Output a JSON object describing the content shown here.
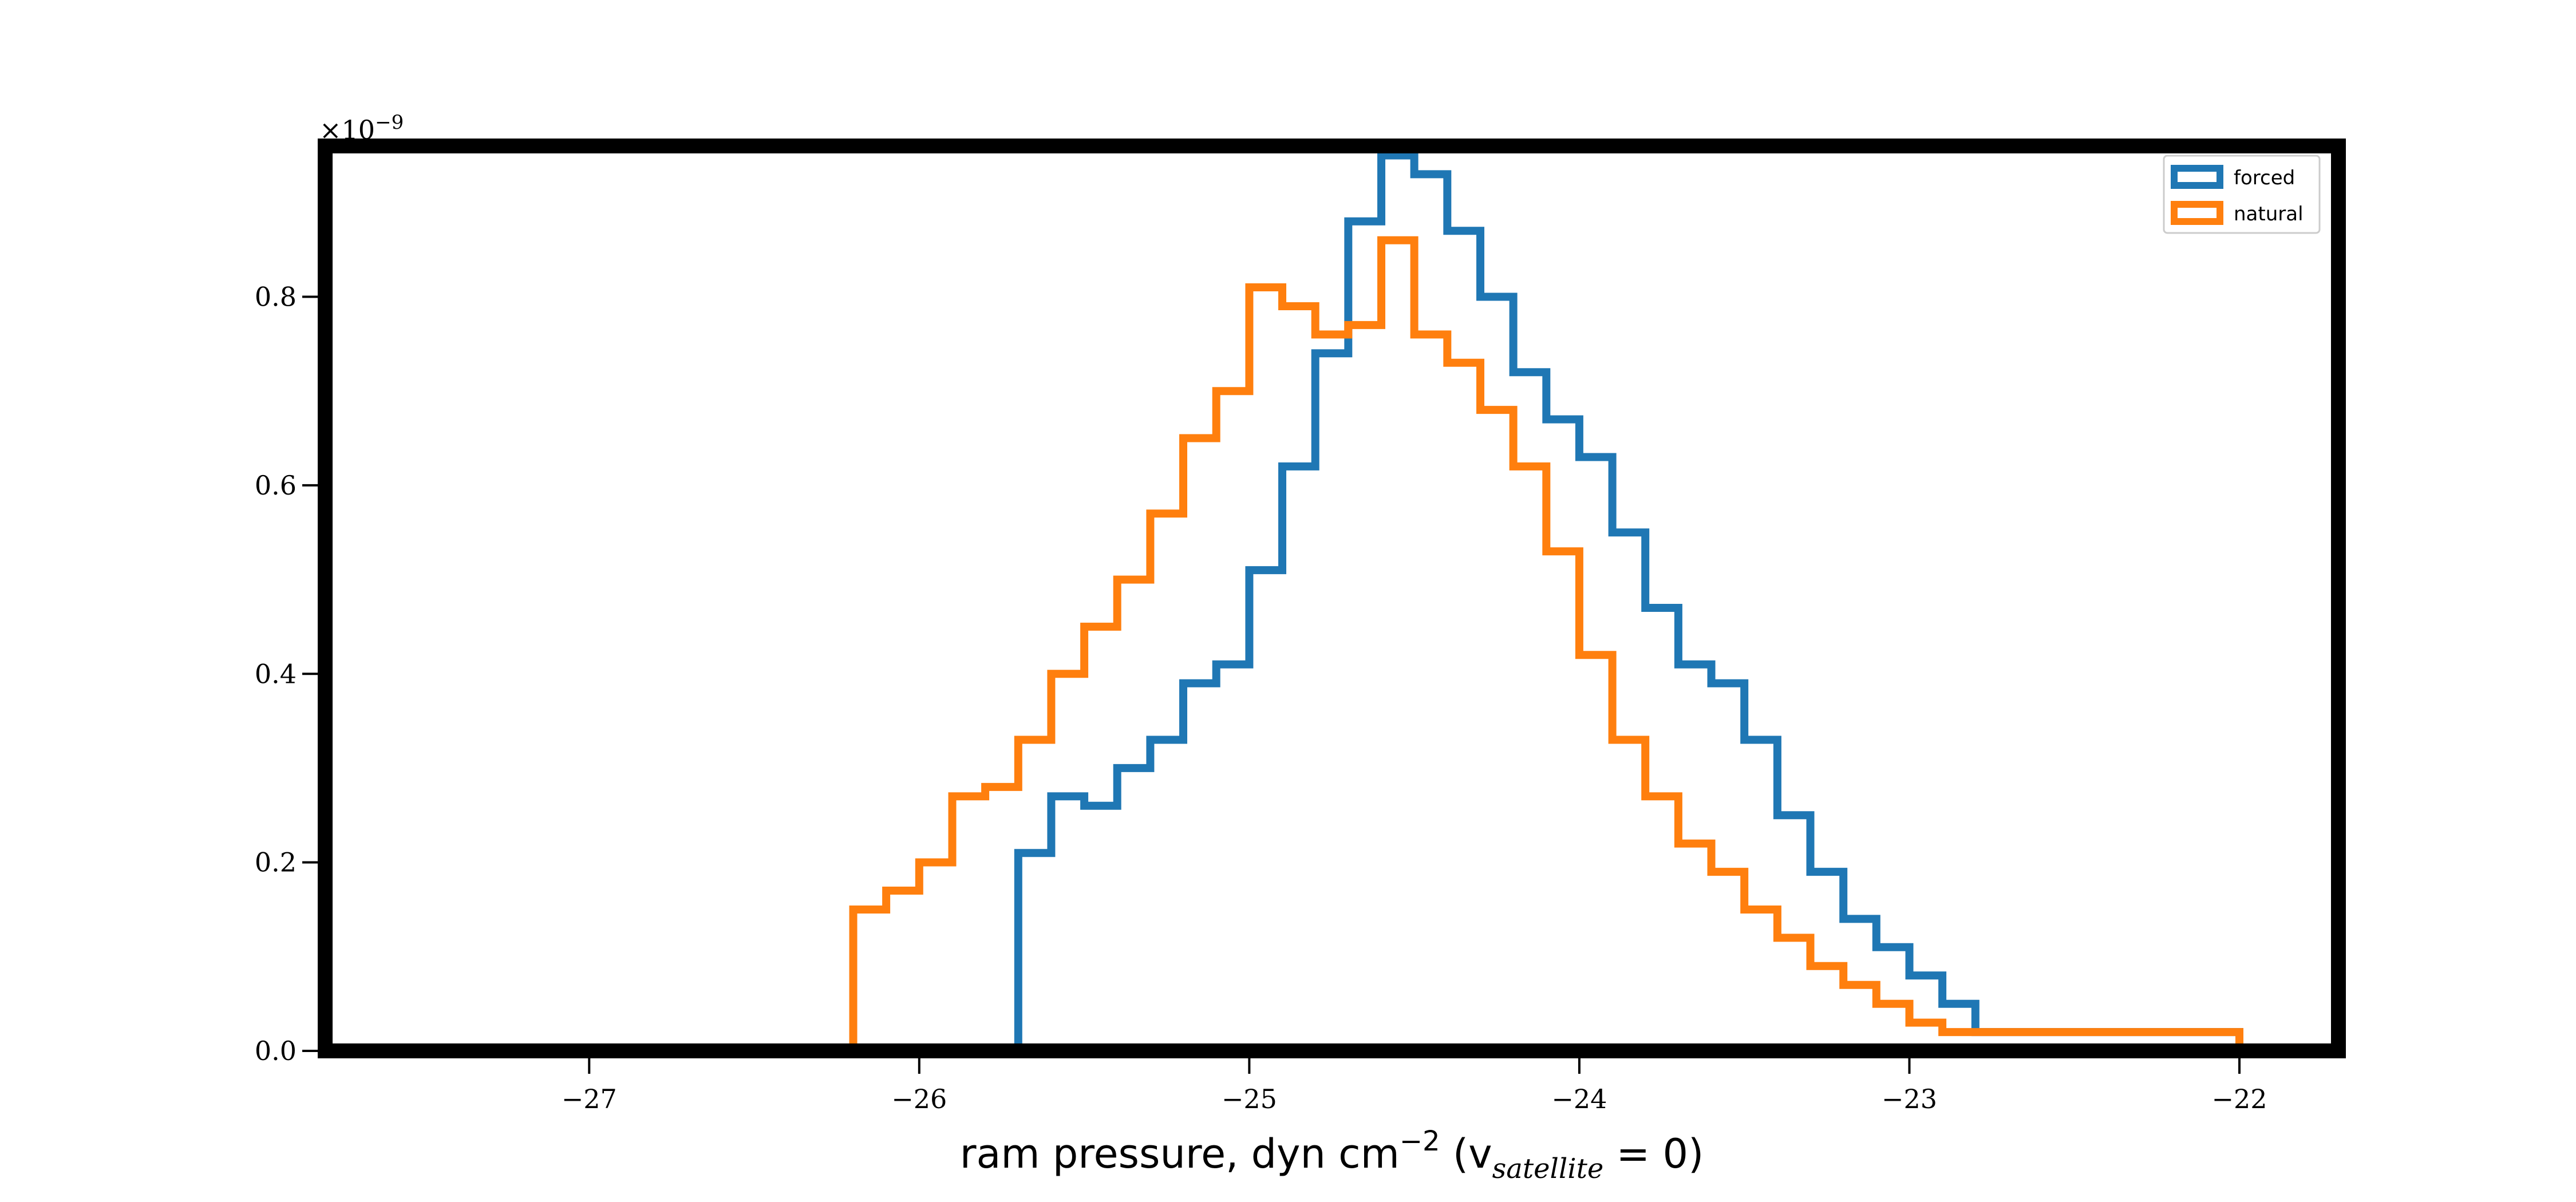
{
  "chart_data": {
    "type": "histogram",
    "xlabel": {
      "prefix": "ram pressure, dyn cm",
      "exponent": "−2",
      "paren_open": " (v",
      "subscript": "satellite",
      "paren_close": " = 0)"
    },
    "ylabel": "",
    "y_multiplier": "×10",
    "y_multiplier_exp": "−9",
    "xlim": [
      -27.8,
      -21.7
    ],
    "ylim": [
      0,
      0.96
    ],
    "x_ticks": [
      -27,
      -26,
      -25,
      -24,
      -23,
      -22
    ],
    "x_tick_labels": [
      "−27",
      "−26",
      "−25",
      "−24",
      "−23",
      "−22"
    ],
    "y_ticks": [
      0,
      0.2,
      0.4,
      0.6,
      0.8
    ],
    "y_tick_labels": [
      "0.0",
      "0.2",
      "0.4",
      "0.6",
      "0.8"
    ],
    "grid": false,
    "legend_position": "top-right",
    "series": [
      {
        "name": "forced",
        "color": "#1f77b4",
        "bin_edges": [
          -26.85,
          -25.7,
          -25.6,
          -25.5,
          -25.4,
          -25.3,
          -25.2,
          -25.1,
          -25.0,
          -24.9,
          -24.8,
          -24.7,
          -24.6,
          -24.5,
          -24.4,
          -24.3,
          -24.2,
          -24.1,
          -24.0,
          -23.9,
          -23.8,
          -23.7,
          -23.6,
          -23.5,
          -23.4,
          -23.3,
          -23.2,
          -23.1,
          -23.0,
          -22.9,
          -22.8,
          -22.0
        ],
        "values": [
          0.0,
          0.21,
          0.27,
          0.26,
          0.3,
          0.33,
          0.39,
          0.41,
          0.51,
          0.62,
          0.74,
          0.88,
          0.95,
          0.93,
          0.87,
          0.8,
          0.72,
          0.67,
          0.63,
          0.55,
          0.47,
          0.41,
          0.39,
          0.33,
          0.25,
          0.19,
          0.14,
          0.11,
          0.08,
          0.05,
          0.02
        ]
      },
      {
        "name": "natural",
        "color": "#ff7f0e",
        "bin_edges": [
          -27.5,
          -26.2,
          -26.1,
          -26.0,
          -25.9,
          -25.8,
          -25.7,
          -25.6,
          -25.5,
          -25.4,
          -25.3,
          -25.2,
          -25.1,
          -25.0,
          -24.9,
          -24.8,
          -24.7,
          -24.6,
          -24.5,
          -24.4,
          -24.3,
          -24.2,
          -24.1,
          -24.0,
          -23.9,
          -23.8,
          -23.7,
          -23.6,
          -23.5,
          -23.4,
          -23.3,
          -23.2,
          -23.1,
          -23.0,
          -22.9,
          -22.0
        ],
        "values": [
          0.0,
          0.15,
          0.17,
          0.2,
          0.27,
          0.28,
          0.33,
          0.4,
          0.45,
          0.5,
          0.57,
          0.65,
          0.7,
          0.81,
          0.79,
          0.76,
          0.77,
          0.86,
          0.76,
          0.73,
          0.68,
          0.62,
          0.53,
          0.42,
          0.33,
          0.27,
          0.22,
          0.19,
          0.15,
          0.12,
          0.09,
          0.07,
          0.05,
          0.03,
          0.02
        ]
      }
    ]
  }
}
